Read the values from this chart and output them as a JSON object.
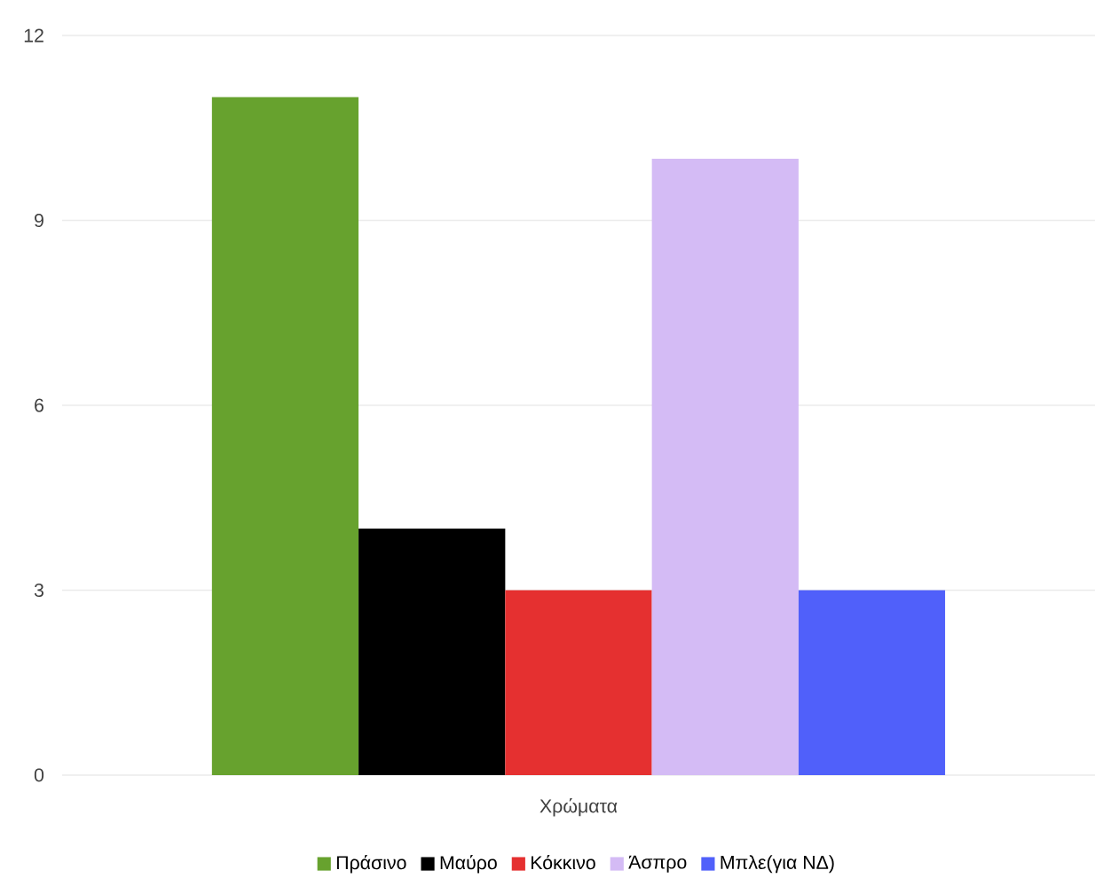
{
  "chart_data": {
    "type": "bar",
    "categories": [
      "Χρώματα"
    ],
    "series": [
      {
        "name": "Πράσινο",
        "color": "#67a22e",
        "values": [
          11
        ]
      },
      {
        "name": "Μαύρο",
        "color": "#000000",
        "values": [
          4
        ]
      },
      {
        "name": "Κόκκινο",
        "color": "#e53030",
        "values": [
          3
        ]
      },
      {
        "name": "Άσπρο",
        "color": "#d4bbf5",
        "values": [
          10
        ]
      },
      {
        "name": "Μπλε(για ΝΔ)",
        "color": "#5060fa",
        "values": [
          3
        ]
      }
    ],
    "ylim": [
      0,
      12
    ],
    "yticks": [
      0,
      3,
      6,
      9,
      12
    ],
    "grid": "y",
    "legend": "bottom"
  }
}
